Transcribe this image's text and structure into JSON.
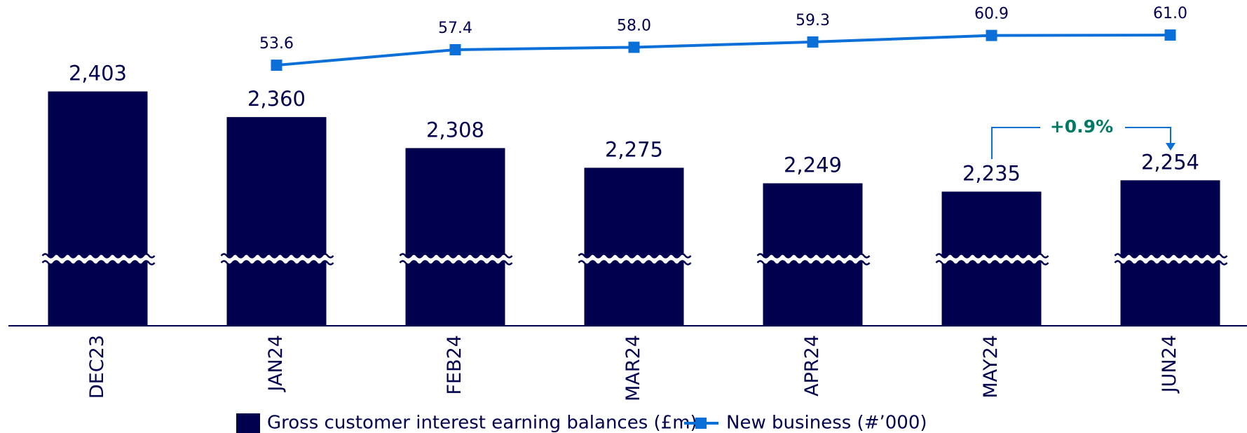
{
  "chart_data": {
    "type": "bar",
    "categories": [
      "DEC23",
      "JAN24",
      "FEB24",
      "MAR24",
      "APR24",
      "MAY24",
      "JUN24"
    ],
    "series": [
      {
        "name": "Gross customer interest earning balances (£m)",
        "type": "bar",
        "color": "#00004f",
        "values": [
          2403,
          2360,
          2308,
          2275,
          2249,
          2235,
          2254
        ],
        "value_labels": [
          "2,403",
          "2,360",
          "2,308",
          "2,275",
          "2,249",
          "2,235",
          "2,254"
        ]
      },
      {
        "name": "New business (#’000)",
        "type": "line",
        "axis": "y2",
        "color": "#0a6fd6",
        "values": [
          null,
          53.6,
          57.4,
          58.0,
          59.3,
          60.9,
          61.0
        ],
        "value_labels": [
          null,
          "53.6",
          "57.4",
          "58.0",
          "59.3",
          "60.9",
          "61.0"
        ]
      }
    ],
    "ylim": [
      2010,
      2450
    ],
    "y2lim": [
      50,
      64
    ],
    "annotation": "+0.9%"
  }
}
